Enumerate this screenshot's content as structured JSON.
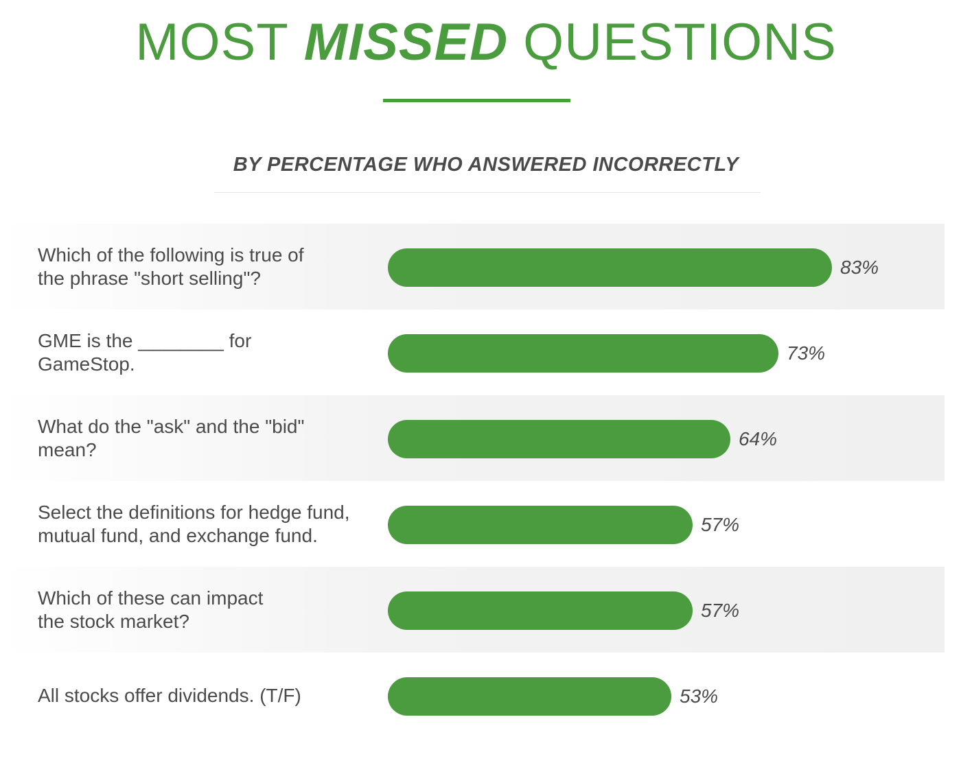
{
  "header": {
    "title_part1": "MOST",
    "title_part2": "MISSED",
    "title_part3": "QUESTIONS",
    "subtitle": "BY PERCENTAGE WHO ANSWERED INCORRECTLY"
  },
  "colors": {
    "accent": "#4b9b3f",
    "text": "#4a4a4a",
    "row_shade": "#f0f0f0"
  },
  "chart_data": {
    "type": "bar",
    "orientation": "horizontal",
    "title": "MOST MISSED QUESTIONS",
    "subtitle": "BY PERCENTAGE WHO ANSWERED INCORRECTLY",
    "categories": [
      "Which of the following is true of\nthe phrase \"short selling\"?",
      "GME is the ________ for\nGameStop.",
      "What do the \"ask\" and the \"bid\"\nmean?",
      "Select the definitions for hedge fund,\nmutual fund, and exchange fund.",
      "Which of these can impact\nthe stock market?",
      "All stocks offer dividends. (T/F)"
    ],
    "values": [
      83,
      73,
      64,
      57,
      57,
      53
    ],
    "value_labels": [
      "83%",
      "73%",
      "64%",
      "57%",
      "57%",
      "53%"
    ],
    "unit": "%",
    "xlim": [
      0,
      100
    ],
    "grid": false,
    "legend": "none"
  }
}
